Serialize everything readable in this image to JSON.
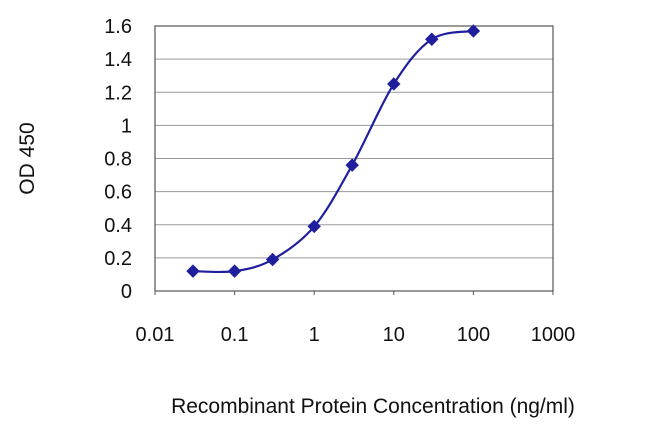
{
  "chart_data": {
    "type": "line",
    "title": "",
    "xlabel": "Recombinant Protein Concentration (ng/ml)",
    "ylabel": "OD 450",
    "x_scale": "log",
    "xlim": [
      0.01,
      1000
    ],
    "ylim": [
      0,
      1.6
    ],
    "x_ticks": [
      "0.01",
      "0.1",
      "1",
      "10",
      "100",
      "1000"
    ],
    "x_tick_values": [
      0.01,
      0.1,
      1,
      10,
      100,
      1000
    ],
    "y_ticks": [
      "0",
      "0.2",
      "0.4",
      "0.6",
      "0.8",
      "1",
      "1.2",
      "1.4",
      "1.6"
    ],
    "y_tick_values": [
      0,
      0.2,
      0.4,
      0.6,
      0.8,
      1,
      1.2,
      1.4,
      1.6
    ],
    "grid": "horizontal",
    "series": [
      {
        "x": [
          0.03,
          0.1,
          0.3,
          1,
          3,
          10,
          30,
          100
        ],
        "y": [
          0.12,
          0.12,
          0.19,
          0.39,
          0.76,
          1.25,
          1.52,
          1.57
        ],
        "color": "#1f1f9e"
      }
    ],
    "colors": {
      "series": "#1f1f9e",
      "grid": "#9a9a9a",
      "frame": "#555555"
    }
  }
}
